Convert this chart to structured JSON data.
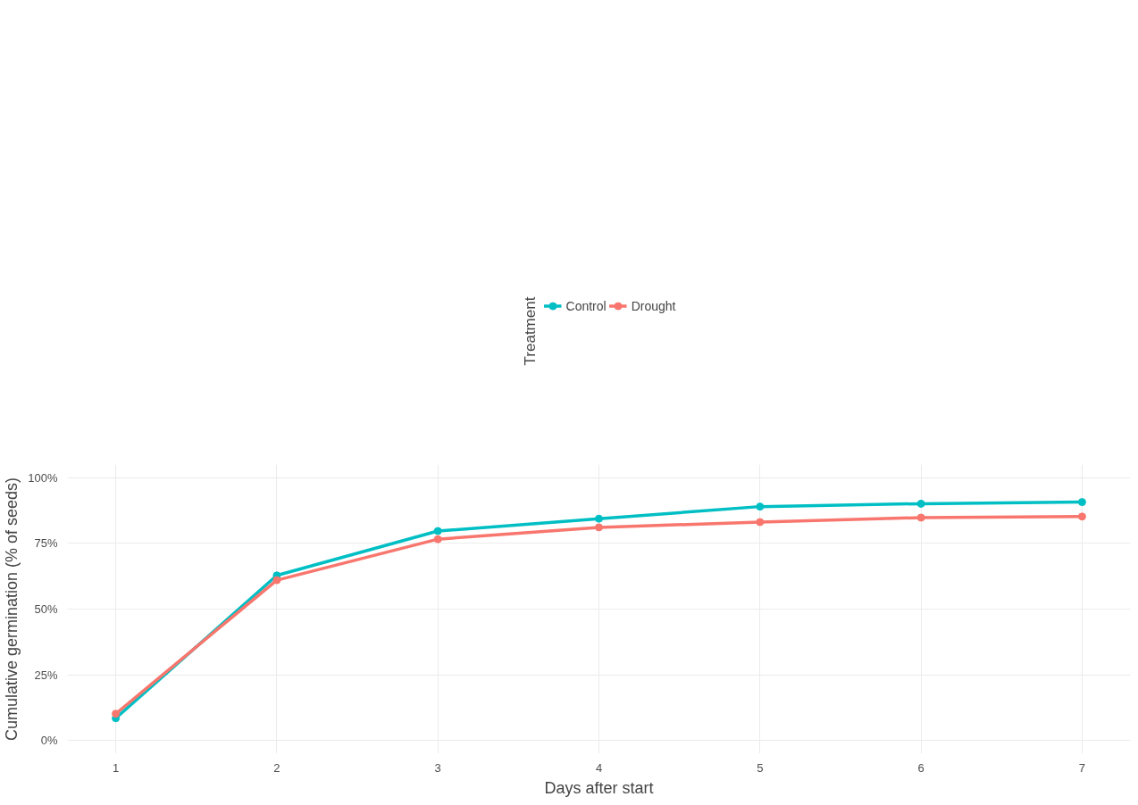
{
  "chart_data": {
    "type": "line",
    "xlabel": "Days after start",
    "ylabel": "Cumulative germination (% of seeds)",
    "legend_title": "Treatment",
    "x": [
      1,
      2,
      3,
      4,
      5,
      6,
      7
    ],
    "series": [
      {
        "name": "Control",
        "color": "#00bfc4",
        "values": [
          8.5,
          62.8,
          79.7,
          84.4,
          89.0,
          90.1,
          90.7
        ]
      },
      {
        "name": "Drought",
        "color": "#f8766d",
        "values": [
          10.2,
          61.0,
          76.6,
          81.1,
          83.1,
          84.8,
          85.2
        ]
      }
    ],
    "xlim": [
      0.7,
      7.3
    ],
    "ylim": [
      -5,
      105
    ],
    "xticks": [
      1,
      2,
      3,
      4,
      5,
      6,
      7
    ],
    "yticks": [
      {
        "value": 0,
        "label": "0%"
      },
      {
        "value": 25,
        "label": "25%"
      },
      {
        "value": 50,
        "label": "50%"
      },
      {
        "value": 75,
        "label": "75%"
      },
      {
        "value": 100,
        "label": "100%"
      }
    ],
    "grid": true,
    "legend": "top",
    "marker": "circle",
    "line_style": "solid"
  }
}
